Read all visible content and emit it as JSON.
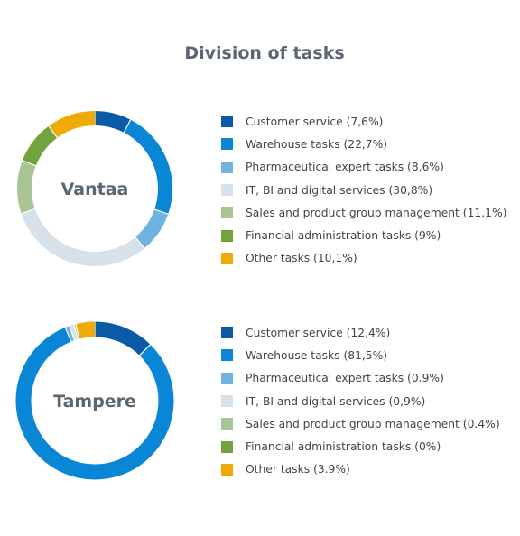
{
  "title": "Division of tasks",
  "colors": {
    "customer_service": "#0a5aa5",
    "warehouse": "#0a86d6",
    "pharma": "#6fb3e0",
    "it": "#d6e1ea",
    "sales": "#a9c593",
    "finance": "#72a33c",
    "other": "#f0aa05"
  },
  "chart_data": [
    {
      "type": "pie",
      "title": "Vantaa",
      "slices": [
        {
          "label": "Customer service (7,6%)",
          "value": 7.6,
          "color": "#0a5aa5"
        },
        {
          "label": "Warehouse tasks (22,7%)",
          "value": 22.7,
          "color": "#0a86d6"
        },
        {
          "label": "Pharmaceutical expert tasks (8,6%)",
          "value": 8.6,
          "color": "#6fb3e0"
        },
        {
          "label": "IT, BI and digital services (30,8%)",
          "value": 30.8,
          "color": "#d6e1ea"
        },
        {
          "label": "Sales and product group management (11,1%)",
          "value": 11.1,
          "color": "#a9c593"
        },
        {
          "label": "Financial administration tasks (9%)",
          "value": 9,
          "color": "#72a33c"
        },
        {
          "label": "Other tasks (10,1%)",
          "value": 10.1,
          "color": "#f0aa05"
        }
      ]
    },
    {
      "type": "pie",
      "title": "Tampere",
      "slices": [
        {
          "label": "Customer service (12,4%)",
          "value": 12.4,
          "color": "#0a5aa5"
        },
        {
          "label": "Warehouse tasks (81,5%)",
          "value": 81.5,
          "color": "#0a86d6"
        },
        {
          "label": "Pharmaceutical expert tasks  (0.9%)",
          "value": 0.9,
          "color": "#6fb3e0"
        },
        {
          "label": "IT, BI and digital services (0,9%)",
          "value": 0.9,
          "color": "#d6e1ea"
        },
        {
          "label": "Sales and product group management (0.4%)",
          "value": 0.4,
          "color": "#a9c593"
        },
        {
          "label": "Financial administration tasks  (0%)",
          "value": 0,
          "color": "#72a33c"
        },
        {
          "label": "Other tasks  (3.9%)",
          "value": 3.9,
          "color": "#f0aa05"
        }
      ]
    }
  ]
}
